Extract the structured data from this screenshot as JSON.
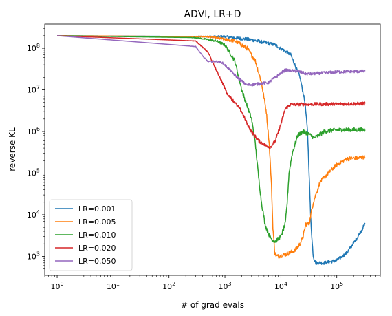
{
  "chart_data": {
    "type": "line",
    "title": "ADVI, LR+D",
    "xlabel": "# of grad evals",
    "ylabel": "reverse KL",
    "xscale": "log",
    "yscale": "log",
    "xlim": [
      0.6,
      600000
    ],
    "ylim": [
      350,
      380000000
    ],
    "grid": false,
    "legend_position": "lower-left",
    "x_ticks": [
      {
        "value": 1,
        "base": "10",
        "exp": "0"
      },
      {
        "value": 10,
        "base": "10",
        "exp": "1"
      },
      {
        "value": 100,
        "base": "10",
        "exp": "2"
      },
      {
        "value": 1000,
        "base": "10",
        "exp": "3"
      },
      {
        "value": 10000,
        "base": "10",
        "exp": "4"
      },
      {
        "value": 100000,
        "base": "10",
        "exp": "5"
      }
    ],
    "y_ticks": [
      {
        "value": 1000,
        "base": "10",
        "exp": "3"
      },
      {
        "value": 10000,
        "base": "10",
        "exp": "4"
      },
      {
        "value": 100000,
        "base": "10",
        "exp": "5"
      },
      {
        "value": 1000000,
        "base": "10",
        "exp": "6"
      },
      {
        "value": 10000000,
        "base": "10",
        "exp": "7"
      },
      {
        "value": 100000000,
        "base": "10",
        "exp": "8"
      }
    ],
    "series": [
      {
        "name": "LR=0.001",
        "color": "#1f77b4",
        "noise": 0.04,
        "points": [
          [
            1,
            200000000.0
          ],
          [
            1000,
            190000000.0
          ],
          [
            3000,
            160000000.0
          ],
          [
            8000,
            120000000.0
          ],
          [
            15000,
            70000000.0
          ],
          [
            22000,
            20000000.0
          ],
          [
            27000,
            5000000.0
          ],
          [
            30000,
            1000000.0
          ],
          [
            32000,
            100000.0
          ],
          [
            34000,
            10000.0
          ],
          [
            36000,
            2500
          ],
          [
            38000,
            1000
          ],
          [
            42000,
            700
          ],
          [
            60000,
            700
          ],
          [
            100000,
            800
          ],
          [
            150000,
            1200
          ],
          [
            220000,
            2500
          ],
          [
            320000,
            6000
          ]
        ]
      },
      {
        "name": "LR=0.005",
        "color": "#ff7f0e",
        "noise": 0.05,
        "points": [
          [
            1,
            200000000.0
          ],
          [
            500,
            190000000.0
          ],
          [
            1500,
            150000000.0
          ],
          [
            2500,
            100000000.0
          ],
          [
            3500,
            50000000.0
          ],
          [
            4500,
            15000000.0
          ],
          [
            5500,
            3000000.0
          ],
          [
            6200,
            500000.0
          ],
          [
            6800,
            50000.0
          ],
          [
            7200,
            5000
          ],
          [
            7800,
            1200
          ],
          [
            8500,
            1000
          ],
          [
            12000,
            1100
          ],
          [
            18000,
            1400
          ],
          [
            22000,
            2000
          ],
          [
            25000,
            3000
          ],
          [
            28000,
            6000
          ],
          [
            32000,
            6000
          ],
          [
            38000,
            20000.0
          ],
          [
            50000,
            60000.0
          ],
          [
            70000,
            100000.0
          ],
          [
            100000,
            160000.0
          ],
          [
            150000,
            220000.0
          ],
          [
            320000,
            240000.0
          ]
        ]
      },
      {
        "name": "LR=0.010",
        "color": "#2ca02c",
        "noise": 0.05,
        "points": [
          [
            1,
            200000000.0
          ],
          [
            300,
            180000000.0
          ],
          [
            700,
            150000000.0
          ],
          [
            1000,
            120000000.0
          ],
          [
            1500,
            50000000.0
          ],
          [
            2000,
            10000000.0
          ],
          [
            2500,
            4000000.0
          ],
          [
            3000,
            2000000.0
          ],
          [
            3500,
            500000.0
          ],
          [
            4000,
            80000.0
          ],
          [
            4500,
            20000.0
          ],
          [
            5200,
            6000
          ],
          [
            6000,
            3500
          ],
          [
            7000,
            2500
          ],
          [
            8000,
            2300
          ],
          [
            10000,
            3000
          ],
          [
            12000,
            6000
          ],
          [
            13000,
            20000.0
          ],
          [
            14000,
            100000.0
          ],
          [
            16000,
            300000.0
          ],
          [
            20000,
            800000.0
          ],
          [
            25000,
            1000000.0
          ],
          [
            30000,
            900000.0
          ],
          [
            40000,
            700000.0
          ],
          [
            60000,
            1000000.0
          ],
          [
            100000,
            1100000.0
          ],
          [
            320000,
            1100000.0
          ]
        ]
      },
      {
        "name": "LR=0.020",
        "color": "#d62728",
        "noise": 0.04,
        "points": [
          [
            1,
            200000000.0
          ],
          [
            300,
            150000000.0
          ],
          [
            500,
            80000000.0
          ],
          [
            700,
            30000000.0
          ],
          [
            900,
            15000000.0
          ],
          [
            1100,
            8000000.0
          ],
          [
            1500,
            5000000.0
          ],
          [
            2000,
            3000000.0
          ],
          [
            2500,
            1500000.0
          ],
          [
            3000,
            1000000.0
          ],
          [
            4000,
            600000.0
          ],
          [
            5500,
            450000.0
          ],
          [
            6500,
            420000.0
          ],
          [
            8000,
            600000.0
          ],
          [
            10000,
            1500000.0
          ],
          [
            12000,
            3500000.0
          ],
          [
            15000,
            4500000.0
          ],
          [
            30000,
            4500000.0
          ],
          [
            100000,
            4600000.0
          ],
          [
            320000,
            4700000.0
          ]
        ]
      },
      {
        "name": "LR=0.050",
        "color": "#9467bd",
        "noise": 0.035,
        "points": [
          [
            1,
            200000000.0
          ],
          [
            300,
            110000000.0
          ],
          [
            420,
            60000000.0
          ],
          [
            500,
            48000000.0
          ],
          [
            700,
            48000000.0
          ],
          [
            900,
            45000000.0
          ],
          [
            1100,
            35000000.0
          ],
          [
            1400,
            25000000.0
          ],
          [
            1800,
            18000000.0
          ],
          [
            2500,
            13000000.0
          ],
          [
            4000,
            14000000.0
          ],
          [
            6000,
            15000000.0
          ],
          [
            8000,
            20000000.0
          ],
          [
            12000,
            30000000.0
          ],
          [
            20000,
            28000000.0
          ],
          [
            30000,
            24000000.0
          ],
          [
            100000,
            27000000.0
          ],
          [
            320000,
            28000000.0
          ]
        ]
      }
    ]
  }
}
